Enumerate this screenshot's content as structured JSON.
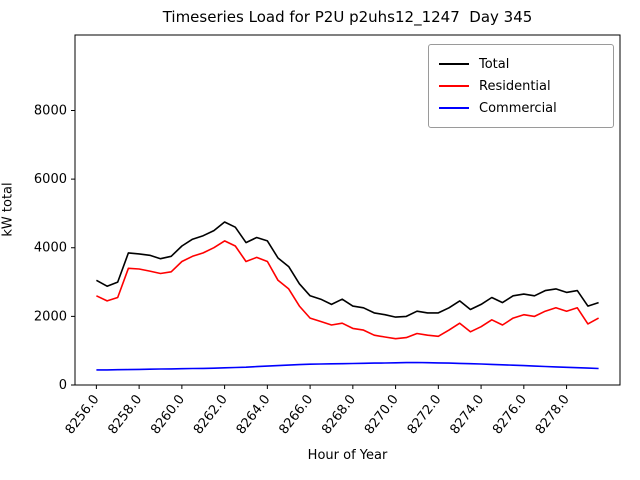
{
  "chart_data": {
    "type": "line",
    "title": "Timeseries Load for P2U p2uhs12_1247  Day 345",
    "xlabel": "Hour of Year",
    "ylabel": "kW total",
    "xlim": [
      8255.0,
      8280.5
    ],
    "ylim": [
      0,
      10200
    ],
    "grid": false,
    "legend_position": "upper right",
    "xticks": [
      8256,
      8258,
      8260,
      8262,
      8264,
      8266,
      8268,
      8270,
      8272,
      8274,
      8276,
      8278
    ],
    "xtick_labels": [
      "8256.0",
      "8258.0",
      "8260.0",
      "8262.0",
      "8264.0",
      "8266.0",
      "8268.0",
      "8270.0",
      "8272.0",
      "8274.0",
      "8276.0",
      "8278.0"
    ],
    "yticks": [
      0,
      2000,
      4000,
      6000,
      8000
    ],
    "ytick_labels": [
      "0",
      "2000",
      "4000",
      "6000",
      "8000"
    ],
    "x": [
      8256.0,
      8256.5,
      8257.0,
      8257.5,
      8258.0,
      8258.5,
      8259.0,
      8259.5,
      8260.0,
      8260.5,
      8261.0,
      8261.5,
      8262.0,
      8262.5,
      8263.0,
      8263.5,
      8264.0,
      8264.5,
      8265.0,
      8265.5,
      8266.0,
      8266.5,
      8267.0,
      8267.5,
      8268.0,
      8268.5,
      8269.0,
      8269.5,
      8270.0,
      8270.5,
      8271.0,
      8271.5,
      8272.0,
      8272.5,
      8273.0,
      8273.5,
      8274.0,
      8274.5,
      8275.0,
      8275.5,
      8276.0,
      8276.5,
      8277.0,
      8277.5,
      8278.0,
      8278.5,
      8279.0,
      8279.5
    ],
    "series": [
      {
        "name": "Total",
        "color": "#000000",
        "values": [
          3050,
          2880,
          3000,
          3850,
          3820,
          3780,
          3680,
          3750,
          4050,
          4250,
          4350,
          4500,
          4750,
          4600,
          4150,
          4300,
          4200,
          3700,
          3450,
          2950,
          2600,
          2500,
          2350,
          2500,
          2300,
          2250,
          2100,
          2050,
          1980,
          2000,
          2150,
          2100,
          2100,
          2250,
          2450,
          2200,
          2350,
          2550,
          2400,
          2600,
          2650,
          2600,
          2750,
          2800,
          2700,
          2750,
          2300,
          2400
        ]
      },
      {
        "name": "Residential",
        "color": "#ff0000",
        "values": [
          2600,
          2450,
          2550,
          3400,
          3380,
          3320,
          3250,
          3300,
          3600,
          3750,
          3850,
          4000,
          4200,
          4050,
          3600,
          3720,
          3600,
          3050,
          2800,
          2300,
          1950,
          1850,
          1750,
          1800,
          1650,
          1600,
          1450,
          1400,
          1350,
          1380,
          1500,
          1450,
          1420,
          1600,
          1800,
          1550,
          1700,
          1900,
          1750,
          1950,
          2050,
          2000,
          2150,
          2250,
          2150,
          2250,
          1780,
          1950
        ]
      },
      {
        "name": "Commercial",
        "color": "#0000ff",
        "values": [
          440,
          440,
          445,
          450,
          455,
          460,
          465,
          470,
          475,
          480,
          485,
          490,
          500,
          510,
          520,
          535,
          550,
          565,
          580,
          595,
          605,
          612,
          618,
          622,
          628,
          632,
          638,
          642,
          648,
          652,
          655,
          650,
          645,
          638,
          630,
          622,
          612,
          600,
          590,
          578,
          565,
          552,
          540,
          528,
          516,
          505,
          492,
          480
        ]
      }
    ]
  }
}
